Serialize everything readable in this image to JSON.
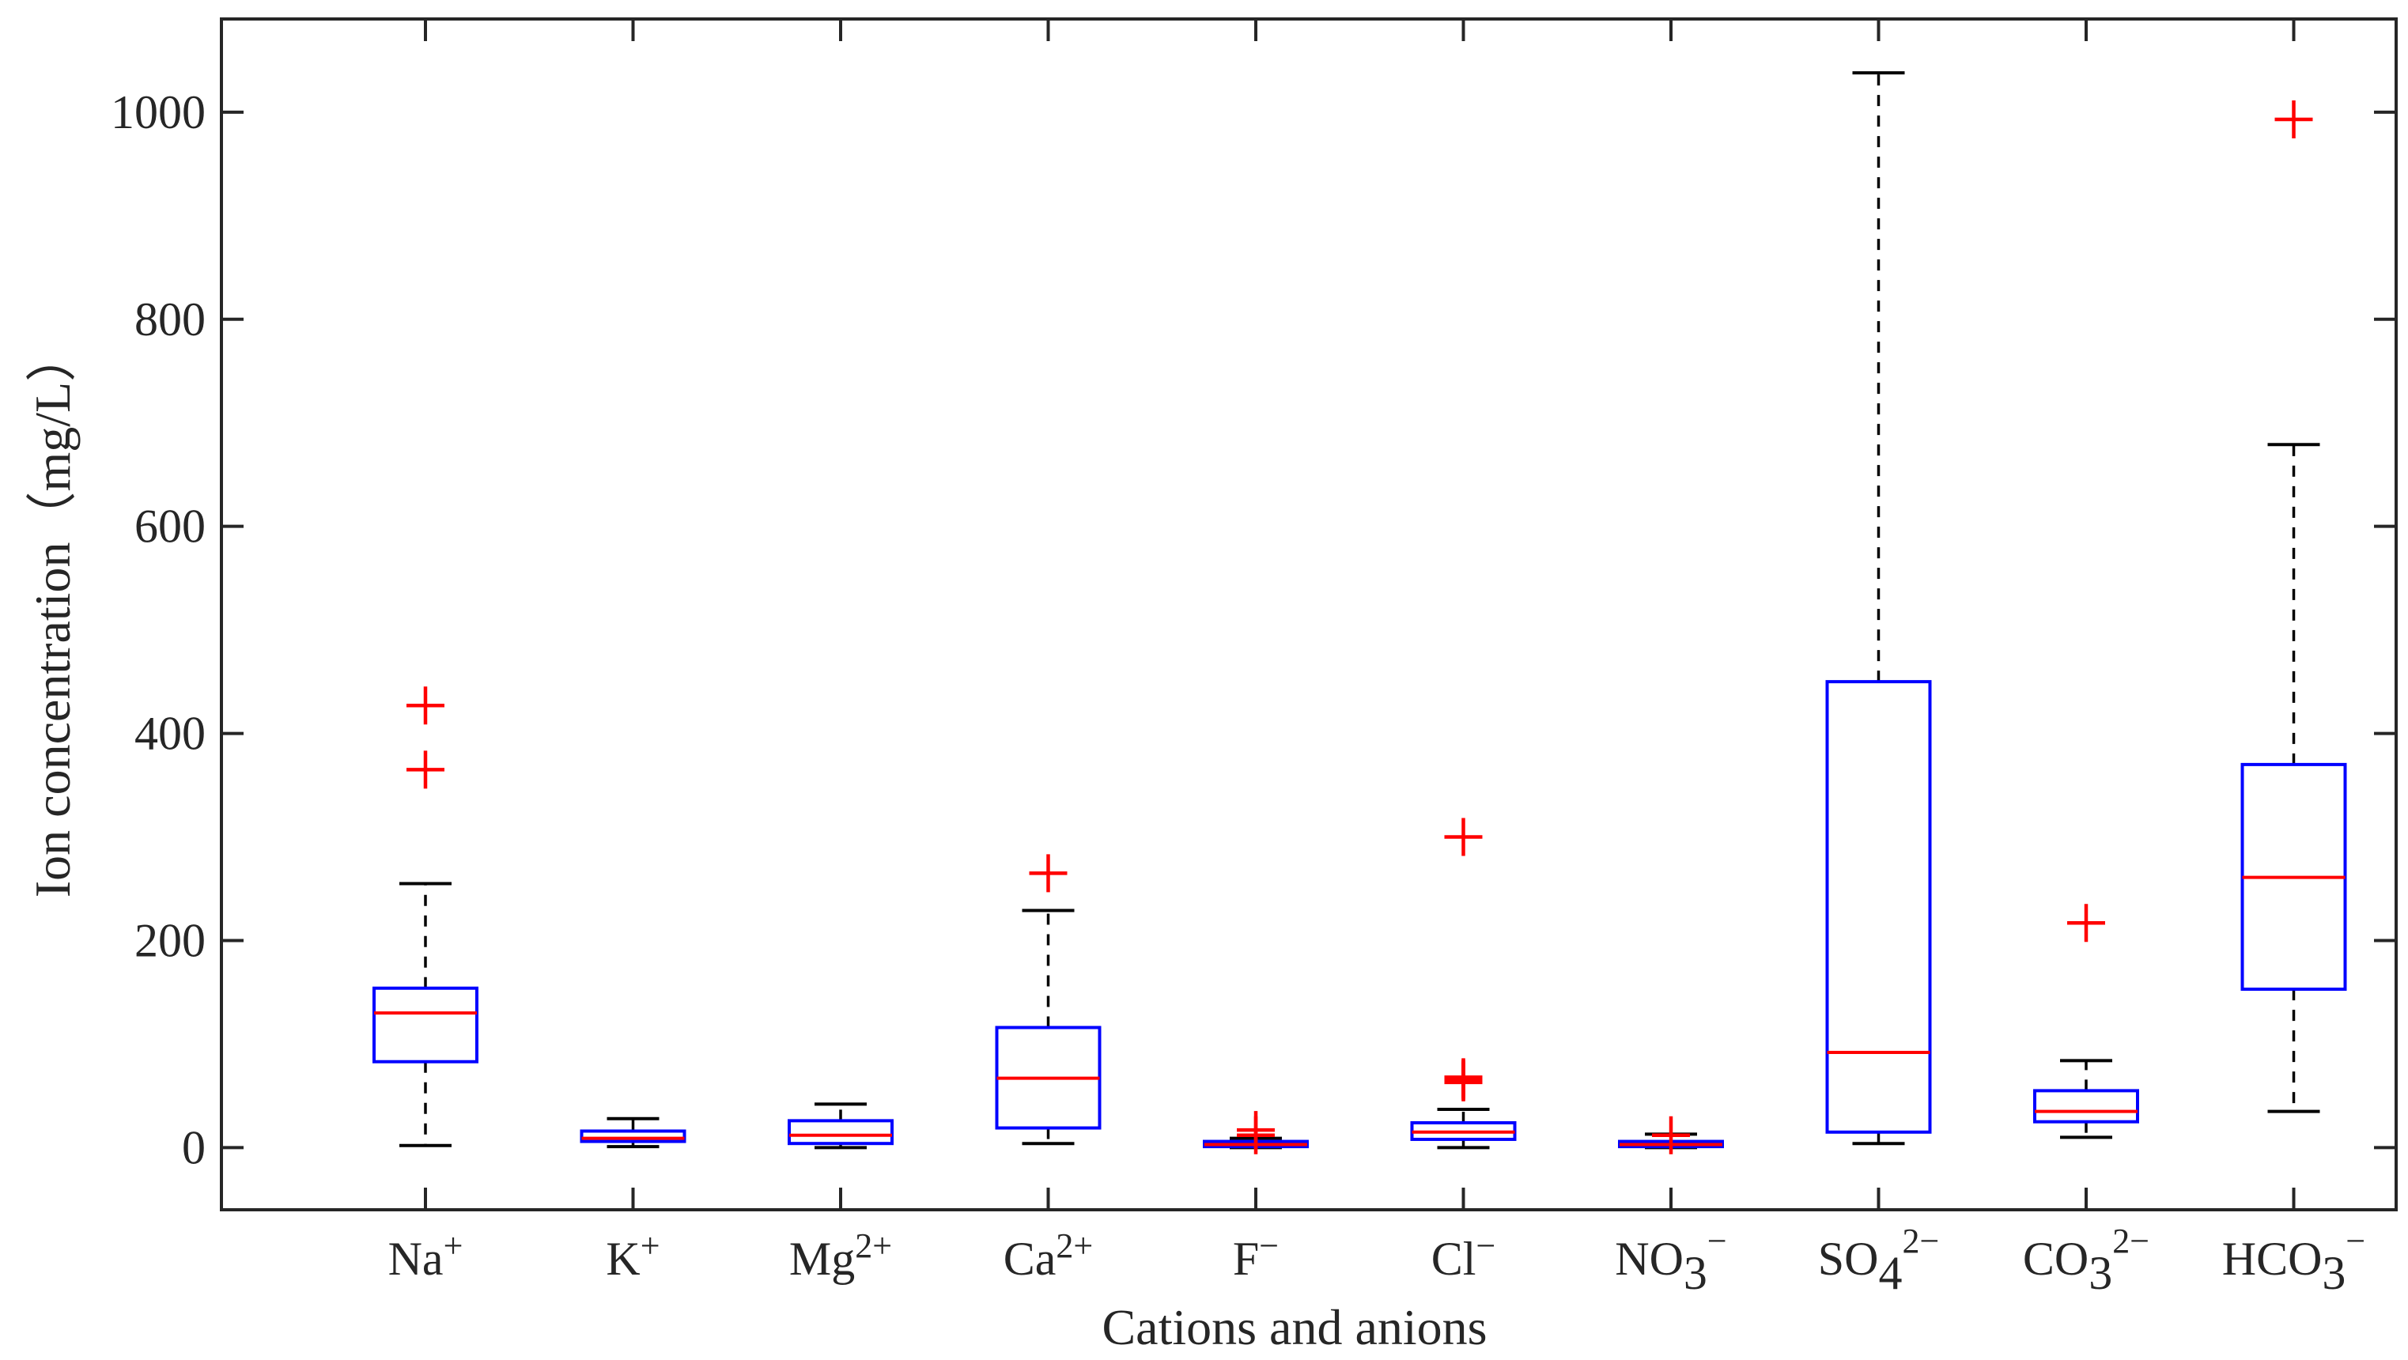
{
  "chart_data": {
    "type": "boxplot",
    "title": "",
    "xlabel": "Cations and anions",
    "ylabel": "Ion concentration（mg/L）",
    "ylim": [
      -60,
      1090
    ],
    "yticks": [
      "0",
      "200",
      "400",
      "600",
      "800",
      "1000"
    ],
    "ytick_values": [
      0,
      200,
      400,
      600,
      800,
      1000
    ],
    "grid": false,
    "categories": [
      {
        "label": "Na",
        "sup": "+",
        "sub": ""
      },
      {
        "label": "K",
        "sup": "+",
        "sub": ""
      },
      {
        "label": "Mg",
        "sup": "2+",
        "sub": ""
      },
      {
        "label": "Ca",
        "sup": "2+",
        "sub": ""
      },
      {
        "label": "F",
        "sup": "−",
        "sub": ""
      },
      {
        "label": "Cl",
        "sup": "−",
        "sub": ""
      },
      {
        "label": "NO",
        "sup": "−",
        "sub": "3"
      },
      {
        "label": "SO",
        "sup": "2−",
        "sub": "4"
      },
      {
        "label": "CO",
        "sup": "2−",
        "sub": "3"
      },
      {
        "label": "HCO",
        "sup": "−",
        "sub": "3"
      }
    ],
    "boxes": [
      {
        "whisker_low": 2,
        "q1": 83,
        "median": 130,
        "q3": 154,
        "whisker_high": 255,
        "outliers": [
          365,
          427
        ]
      },
      {
        "whisker_low": 1,
        "q1": 6,
        "median": 9,
        "q3": 16,
        "whisker_high": 28,
        "outliers": []
      },
      {
        "whisker_low": 0,
        "q1": 4,
        "median": 12,
        "q3": 26,
        "whisker_high": 42,
        "outliers": []
      },
      {
        "whisker_low": 4,
        "q1": 19,
        "median": 67,
        "q3": 116,
        "whisker_high": 229,
        "outliers": [
          265
        ]
      },
      {
        "whisker_low": 0,
        "q1": 1,
        "median": 3,
        "q3": 6,
        "whisker_high": 9,
        "outliers": [
          12,
          17
        ]
      },
      {
        "whisker_low": 0,
        "q1": 8,
        "median": 15,
        "q3": 24,
        "whisker_high": 37,
        "outliers": [
          63,
          64,
          65,
          66,
          67,
          68,
          300
        ]
      },
      {
        "whisker_low": 0,
        "q1": 1,
        "median": 3,
        "q3": 6,
        "whisker_high": 13,
        "outliers": [
          12
        ]
      },
      {
        "whisker_low": 4,
        "q1": 15,
        "median": 92,
        "q3": 450,
        "whisker_high": 1038,
        "outliers": []
      },
      {
        "whisker_low": 10,
        "q1": 25,
        "median": 35,
        "q3": 55,
        "whisker_high": 84,
        "outliers": [
          217
        ]
      },
      {
        "whisker_low": 35,
        "q1": 153,
        "median": 261,
        "q3": 370,
        "whisker_high": 679,
        "outliers": [
          993
        ]
      }
    ],
    "colors": {
      "box": "#0000ff",
      "median": "#ff0000",
      "outlier": "#ff0000",
      "whisker": "#000000",
      "axis": "#262626"
    }
  }
}
